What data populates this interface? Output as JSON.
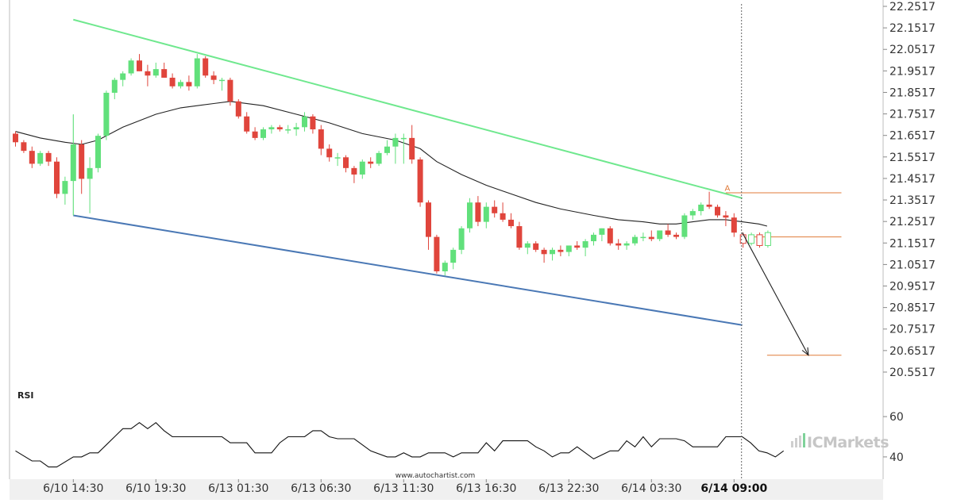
{
  "chart_data": {
    "type": "candlestick",
    "price_axis": {
      "ticks": [
        "22.2517",
        "22.1517",
        "22.0517",
        "21.9517",
        "21.8517",
        "21.7517",
        "21.6517",
        "21.5517",
        "21.4517",
        "21.3517",
        "21.2517",
        "21.1517",
        "21.0517",
        "20.9517",
        "20.8517",
        "20.7517",
        "20.6517",
        "20.5517"
      ],
      "ylim": [
        20.5,
        22.2517
      ]
    },
    "rsi_axis": {
      "label": "RSI",
      "ticks": [
        "60",
        "40"
      ],
      "ylim": [
        25,
        75
      ]
    },
    "x_ticks": [
      {
        "label": "6/10 14:30",
        "index": 7
      },
      {
        "label": "6/10 19:30",
        "index": 17
      },
      {
        "label": "6/13 01:30",
        "index": 27
      },
      {
        "label": "6/13 06:30",
        "index": 37
      },
      {
        "label": "6/13 11:30",
        "index": 47
      },
      {
        "label": "6/13 16:30",
        "index": 57
      },
      {
        "label": "6/13 22:30",
        "index": 67
      },
      {
        "label": "6/14 03:30",
        "index": 77
      },
      {
        "label": "6/14 09:00",
        "index": 87,
        "bold": true
      }
    ],
    "candles": [
      [
        21.66,
        21.67,
        21.6,
        21.62
      ],
      [
        21.62,
        21.63,
        21.57,
        21.58
      ],
      [
        21.58,
        21.6,
        21.5,
        21.52
      ],
      [
        21.52,
        21.58,
        21.51,
        21.57
      ],
      [
        21.57,
        21.58,
        21.51,
        21.53
      ],
      [
        21.53,
        21.55,
        21.36,
        21.38
      ],
      [
        21.38,
        21.46,
        21.33,
        21.44
      ],
      [
        21.44,
        21.75,
        21.28,
        21.61
      ],
      [
        21.61,
        21.63,
        21.38,
        21.45
      ],
      [
        21.45,
        21.55,
        21.29,
        21.5
      ],
      [
        21.5,
        21.66,
        21.48,
        21.65
      ],
      [
        21.65,
        21.86,
        21.63,
        21.85
      ],
      [
        21.85,
        21.92,
        21.82,
        21.91
      ],
      [
        21.91,
        21.95,
        21.88,
        21.94
      ],
      [
        21.94,
        22.01,
        21.93,
        22.0
      ],
      [
        22.0,
        22.03,
        21.95,
        21.95
      ],
      [
        21.95,
        21.98,
        21.88,
        21.93
      ],
      [
        21.93,
        21.99,
        21.92,
        21.96
      ],
      [
        21.96,
        21.99,
        21.92,
        21.92
      ],
      [
        21.92,
        21.94,
        21.87,
        21.88
      ],
      [
        21.88,
        21.91,
        21.87,
        21.9
      ],
      [
        21.9,
        21.93,
        21.86,
        21.88
      ],
      [
        21.88,
        22.03,
        21.87,
        22.01
      ],
      [
        22.01,
        22.02,
        21.92,
        21.93
      ],
      [
        21.93,
        21.95,
        21.89,
        21.91
      ],
      [
        21.91,
        21.92,
        21.86,
        21.91
      ],
      [
        21.91,
        21.92,
        21.79,
        21.81
      ],
      [
        21.81,
        21.82,
        21.73,
        21.74
      ],
      [
        21.74,
        21.76,
        21.66,
        21.67
      ],
      [
        21.67,
        21.69,
        21.63,
        21.64
      ],
      [
        21.64,
        21.69,
        21.63,
        21.68
      ],
      [
        21.68,
        21.7,
        21.66,
        21.69
      ],
      [
        21.69,
        21.7,
        21.67,
        21.68
      ],
      [
        21.68,
        21.7,
        21.66,
        21.68
      ],
      [
        21.68,
        21.71,
        21.65,
        21.69
      ],
      [
        21.69,
        21.76,
        21.67,
        21.74
      ],
      [
        21.74,
        21.75,
        21.66,
        21.68
      ],
      [
        21.68,
        21.7,
        21.56,
        21.59
      ],
      [
        21.59,
        21.61,
        21.53,
        21.55
      ],
      [
        21.55,
        21.57,
        21.51,
        21.55
      ],
      [
        21.55,
        21.56,
        21.48,
        21.5
      ],
      [
        21.5,
        21.51,
        21.43,
        21.47
      ],
      [
        21.47,
        21.54,
        21.45,
        21.53
      ],
      [
        21.53,
        21.55,
        21.5,
        21.52
      ],
      [
        21.52,
        21.58,
        21.51,
        21.57
      ],
      [
        21.57,
        21.63,
        21.56,
        21.6
      ],
      [
        21.6,
        21.66,
        21.52,
        21.64
      ],
      [
        21.64,
        21.66,
        21.52,
        21.64
      ],
      [
        21.64,
        21.7,
        21.52,
        21.54
      ],
      [
        21.54,
        21.55,
        21.32,
        21.34
      ],
      [
        21.34,
        21.35,
        21.12,
        21.18
      ],
      [
        21.18,
        21.19,
        21.01,
        21.02
      ],
      [
        21.02,
        21.07,
        21.0,
        21.06
      ],
      [
        21.06,
        21.13,
        21.03,
        21.12
      ],
      [
        21.12,
        21.23,
        21.1,
        21.22
      ],
      [
        21.22,
        21.36,
        21.2,
        21.34
      ],
      [
        21.34,
        21.37,
        21.23,
        21.25
      ],
      [
        21.25,
        21.34,
        21.22,
        21.32
      ],
      [
        21.32,
        21.35,
        21.27,
        21.29
      ],
      [
        21.29,
        21.34,
        21.25,
        21.26
      ],
      [
        21.26,
        21.29,
        21.22,
        21.23
      ],
      [
        21.23,
        21.25,
        21.12,
        21.13
      ],
      [
        21.13,
        21.16,
        21.1,
        21.15
      ],
      [
        21.15,
        21.16,
        21.11,
        21.12
      ],
      [
        21.12,
        21.13,
        21.06,
        21.1
      ],
      [
        21.1,
        21.13,
        21.07,
        21.12
      ],
      [
        21.12,
        21.14,
        21.09,
        21.11
      ],
      [
        21.11,
        21.14,
        21.09,
        21.14
      ],
      [
        21.14,
        21.16,
        21.12,
        21.13
      ],
      [
        21.13,
        21.17,
        21.09,
        21.16
      ],
      [
        21.16,
        21.2,
        21.14,
        21.19
      ],
      [
        21.19,
        21.22,
        21.16,
        21.22
      ],
      [
        21.22,
        21.23,
        21.14,
        21.15
      ],
      [
        21.15,
        21.17,
        21.12,
        21.14
      ],
      [
        21.14,
        21.16,
        21.12,
        21.15
      ],
      [
        21.15,
        21.19,
        21.14,
        21.18
      ],
      [
        21.18,
        21.2,
        21.16,
        21.18
      ],
      [
        21.18,
        21.21,
        21.16,
        21.17
      ],
      [
        21.17,
        21.21,
        21.16,
        21.21
      ],
      [
        21.21,
        21.24,
        21.18,
        21.19
      ],
      [
        21.19,
        21.2,
        21.17,
        21.18
      ],
      [
        21.18,
        21.29,
        21.17,
        21.28
      ],
      [
        21.28,
        21.31,
        21.26,
        21.3
      ],
      [
        21.3,
        21.34,
        21.28,
        21.33
      ],
      [
        21.33,
        21.39,
        21.31,
        21.32
      ],
      [
        21.32,
        21.33,
        21.27,
        21.28
      ],
      [
        21.28,
        21.3,
        21.23,
        21.27
      ],
      [
        21.27,
        21.29,
        21.18,
        21.2
      ]
    ],
    "projected_candles": [
      [
        21.19,
        21.2,
        21.13,
        21.15
      ],
      [
        21.15,
        21.2,
        21.14,
        21.19
      ],
      [
        21.19,
        21.2,
        21.13,
        21.14
      ],
      [
        21.14,
        21.21,
        21.13,
        21.2
      ]
    ],
    "moving_average": [
      [
        0,
        21.67
      ],
      [
        3,
        21.64
      ],
      [
        6,
        21.62
      ],
      [
        8,
        21.61
      ],
      [
        10,
        21.63
      ],
      [
        13,
        21.69
      ],
      [
        17,
        21.75
      ],
      [
        20,
        21.78
      ],
      [
        24,
        21.8
      ],
      [
        26,
        21.81
      ],
      [
        30,
        21.79
      ],
      [
        34,
        21.75
      ],
      [
        38,
        21.71
      ],
      [
        42,
        21.66
      ],
      [
        46,
        21.63
      ],
      [
        49,
        21.59
      ],
      [
        51,
        21.53
      ],
      [
        54,
        21.47
      ],
      [
        57,
        21.42
      ],
      [
        60,
        21.38
      ],
      [
        63,
        21.34
      ],
      [
        66,
        21.31
      ],
      [
        70,
        21.28
      ],
      [
        73,
        21.26
      ],
      [
        76,
        21.25
      ],
      [
        78,
        21.24
      ],
      [
        80,
        21.24
      ],
      [
        82,
        21.25
      ],
      [
        84,
        21.26
      ],
      [
        86,
        21.26
      ],
      [
        88,
        21.25
      ],
      [
        90,
        21.24
      ],
      [
        91,
        21.23
      ]
    ],
    "channel": {
      "resistance": [
        [
          7,
          22.19
        ],
        [
          88,
          21.36
        ]
      ],
      "support": [
        [
          7,
          21.28
        ],
        [
          88,
          20.77
        ]
      ]
    },
    "annotation_point": {
      "label": "A",
      "index": 86,
      "value": 21.39
    },
    "levels": [
      {
        "name": "resistance-level",
        "value": 21.385,
        "from": 86,
        "to": 100
      },
      {
        "name": "current-level",
        "value": 21.18,
        "from": 89,
        "to": 100
      },
      {
        "name": "target-level",
        "value": 20.63,
        "from": 91,
        "to": 100
      }
    ],
    "forecast_arrow": [
      [
        88,
        21.2
      ],
      [
        96,
        20.63
      ]
    ],
    "current_time_index": 88,
    "rsi": [
      [
        0,
        43
      ],
      [
        2,
        38
      ],
      [
        3,
        38
      ],
      [
        4,
        35
      ],
      [
        5,
        35
      ],
      [
        7,
        40
      ],
      [
        8,
        40
      ],
      [
        9,
        42
      ],
      [
        10,
        42
      ],
      [
        11,
        46
      ],
      [
        12,
        50
      ],
      [
        13,
        54
      ],
      [
        14,
        54
      ],
      [
        15,
        57
      ],
      [
        16,
        54
      ],
      [
        17,
        57
      ],
      [
        18,
        53
      ],
      [
        19,
        50
      ],
      [
        20,
        50
      ],
      [
        25,
        50
      ],
      [
        26,
        47
      ],
      [
        28,
        47
      ],
      [
        29,
        42
      ],
      [
        31,
        42
      ],
      [
        32,
        47
      ],
      [
        33,
        50
      ],
      [
        35,
        50
      ],
      [
        36,
        53
      ],
      [
        37,
        53
      ],
      [
        38,
        50
      ],
      [
        39,
        49
      ],
      [
        41,
        49
      ],
      [
        43,
        43
      ],
      [
        45,
        40
      ],
      [
        46,
        40
      ],
      [
        47,
        42
      ],
      [
        48,
        40
      ],
      [
        49,
        40
      ],
      [
        50,
        42
      ],
      [
        52,
        42
      ],
      [
        53,
        40
      ],
      [
        54,
        42
      ],
      [
        56,
        42
      ],
      [
        57,
        47
      ],
      [
        58,
        43
      ],
      [
        59,
        48
      ],
      [
        62,
        48
      ],
      [
        63,
        45
      ],
      [
        64,
        43
      ],
      [
        65,
        40
      ],
      [
        66,
        42
      ],
      [
        67,
        42
      ],
      [
        68,
        45
      ],
      [
        69,
        42
      ],
      [
        70,
        39
      ],
      [
        72,
        43
      ],
      [
        73,
        43
      ],
      [
        74,
        48
      ],
      [
        75,
        45
      ],
      [
        76,
        50
      ],
      [
        77,
        45
      ],
      [
        78,
        49
      ],
      [
        80,
        49
      ],
      [
        81,
        48
      ],
      [
        82,
        45
      ],
      [
        85,
        45
      ],
      [
        86,
        50
      ],
      [
        88,
        50
      ],
      [
        89,
        47
      ],
      [
        90,
        43
      ],
      [
        91,
        42
      ],
      [
        92,
        40
      ],
      [
        93,
        43
      ]
    ]
  },
  "watermark": {
    "text": "www.autochartist.com"
  },
  "brand": {
    "text": "ICMarkets",
    "glyph": "▌▌"
  }
}
